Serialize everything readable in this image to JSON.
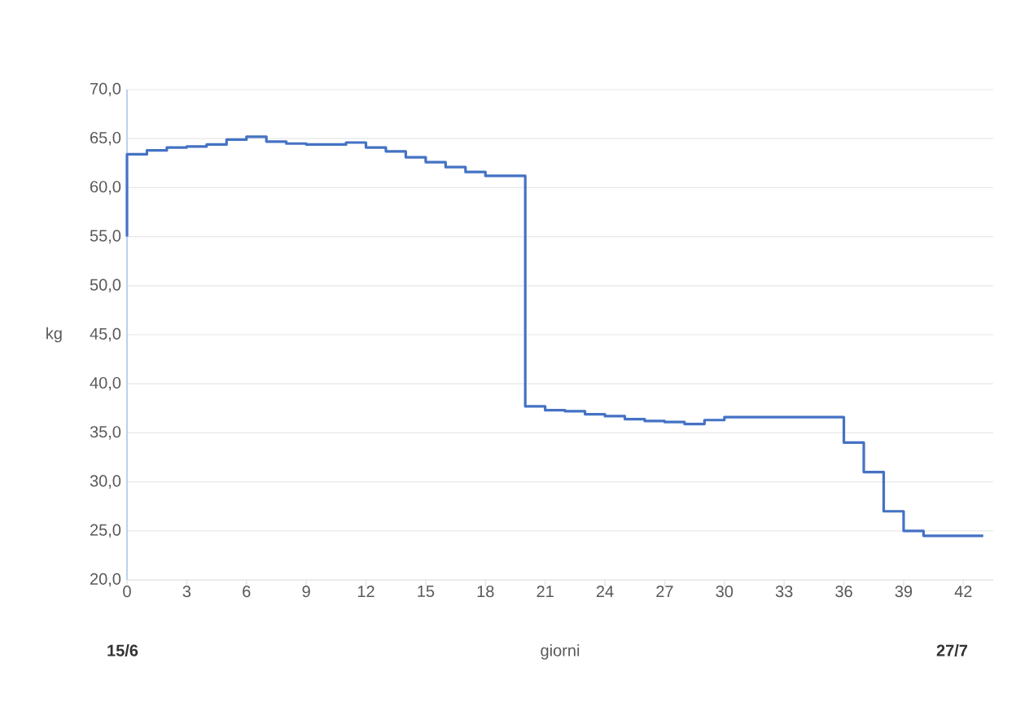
{
  "chart_data": {
    "type": "step",
    "xlabel": "giorni",
    "ylabel": "kg",
    "annotations": [
      "**15/6**",
      "**27/7**"
    ],
    "x": [
      0,
      0,
      1,
      2,
      3,
      4,
      5,
      6,
      7,
      8,
      9,
      10,
      11,
      12,
      13,
      14,
      15,
      16,
      17,
      18,
      19,
      20,
      21,
      22,
      23,
      24,
      25,
      26,
      27,
      28,
      29,
      30,
      31,
      32,
      33,
      34,
      35,
      36,
      37,
      38,
      39,
      40,
      41,
      42,
      43
    ],
    "series": [
      {
        "color": "#4472c4",
        "values": [
          55,
          63.4,
          63.8,
          64.1,
          64.2,
          64.4,
          64.9,
          65.2,
          64.7,
          64.5,
          64.4,
          64.4,
          64.6,
          64.1,
          63.7,
          63.1,
          62.6,
          62.1,
          61.6,
          61.2,
          61.2,
          37.7,
          37.3,
          37.2,
          36.9,
          36.7,
          36.4,
          36.2,
          36.1,
          35.9,
          36.3,
          36.6,
          36.6,
          36.6,
          36.6,
          36.6,
          36.6,
          34.0,
          31.0,
          27.0,
          25.0,
          24.5,
          24.5,
          24.5,
          24.5
        ]
      }
    ],
    "xlim": [
      0,
      43.5
    ],
    "xticks": [
      0,
      3,
      6,
      9,
      12,
      15,
      18,
      21,
      24,
      27,
      30,
      33,
      36,
      39,
      42
    ],
    "ylim": [
      20,
      70
    ],
    "yticks": [
      {
        "value": 20,
        "label": "20,0"
      },
      {
        "value": 25,
        "label": "25,0"
      },
      {
        "value": 30,
        "label": "30,0"
      },
      {
        "value": 35,
        "label": "35,0"
      },
      {
        "value": 40,
        "label": "40,0"
      },
      {
        "value": 45,
        "label": "45,0"
      },
      {
        "value": 50,
        "label": "50,0"
      },
      {
        "value": 55,
        "label": "55,0"
      },
      {
        "value": 60,
        "label": "60,0"
      },
      {
        "value": 65,
        "label": "65,0"
      },
      {
        "value": 70,
        "label": "70,0"
      }
    ],
    "grid": "y",
    "marker": "none",
    "line_style": "solid"
  }
}
